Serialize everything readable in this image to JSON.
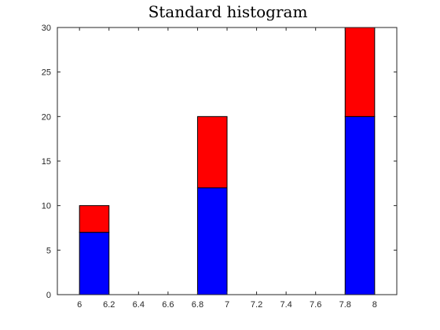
{
  "chart_data": {
    "type": "bar",
    "stacked": true,
    "title": "Standard histogram",
    "xlabel": "",
    "ylabel": "",
    "xlim": [
      5.85,
      8.15
    ],
    "ylim": [
      0,
      30
    ],
    "xticks": [
      "6",
      "6.2",
      "6.4",
      "6.6",
      "6.8",
      "7",
      "7.2",
      "7.4",
      "7.6",
      "7.8",
      "8"
    ],
    "yticks": [
      "0",
      "5",
      "10",
      "15",
      "20",
      "25",
      "30"
    ],
    "grid": false,
    "bars": [
      {
        "x_start": 6.0,
        "x_end": 6.2
      },
      {
        "x_start": 6.8,
        "x_end": 7.0
      },
      {
        "x_start": 7.8,
        "x_end": 8.0
      }
    ],
    "series": [
      {
        "color": "#0000ff",
        "values": [
          7,
          12,
          20
        ]
      },
      {
        "color": "#ff0000",
        "values": [
          3,
          8,
          10
        ]
      }
    ]
  }
}
